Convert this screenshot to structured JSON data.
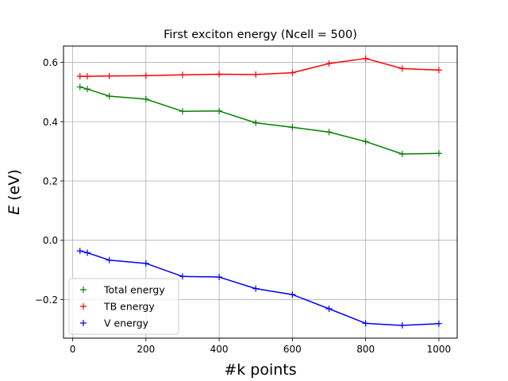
{
  "chart_data": {
    "type": "line",
    "title": "First exciton energy (Ncell = 500)",
    "xlabel": "#k points",
    "ylabel_italic": "E",
    "ylabel_rest": " (eV)",
    "xlim": [
      -25,
      1050
    ],
    "ylim": [
      -0.33,
      0.655
    ],
    "xticks": [
      0,
      200,
      400,
      600,
      800,
      1000
    ],
    "xtick_labels": [
      "0",
      "200",
      "400",
      "600",
      "800",
      "1000"
    ],
    "yticks": [
      -0.2,
      0.0,
      0.2,
      0.4,
      0.6
    ],
    "ytick_labels": [
      "−0.2",
      "0.0",
      "0.2",
      "0.4",
      "0.6"
    ],
    "grid": true,
    "legend_position": "lower-left",
    "x": [
      20,
      40,
      100,
      200,
      300,
      400,
      500,
      600,
      700,
      800,
      900,
      1000
    ],
    "series": [
      {
        "name": "Total energy",
        "color": "#008000",
        "marker": "+",
        "values": [
          0.517,
          0.51,
          0.486,
          0.476,
          0.435,
          0.436,
          0.396,
          0.381,
          0.365,
          0.333,
          0.291,
          0.293
        ]
      },
      {
        "name": "TB energy",
        "color": "#ff0000",
        "marker": "+",
        "values": [
          0.553,
          0.553,
          0.554,
          0.555,
          0.558,
          0.56,
          0.559,
          0.565,
          0.596,
          0.613,
          0.579,
          0.574
        ]
      },
      {
        "name": "V energy",
        "color": "#0000ff",
        "marker": "+",
        "values": [
          -0.036,
          -0.042,
          -0.067,
          -0.078,
          -0.122,
          -0.124,
          -0.163,
          -0.183,
          -0.231,
          -0.28,
          -0.287,
          -0.281
        ]
      }
    ]
  }
}
